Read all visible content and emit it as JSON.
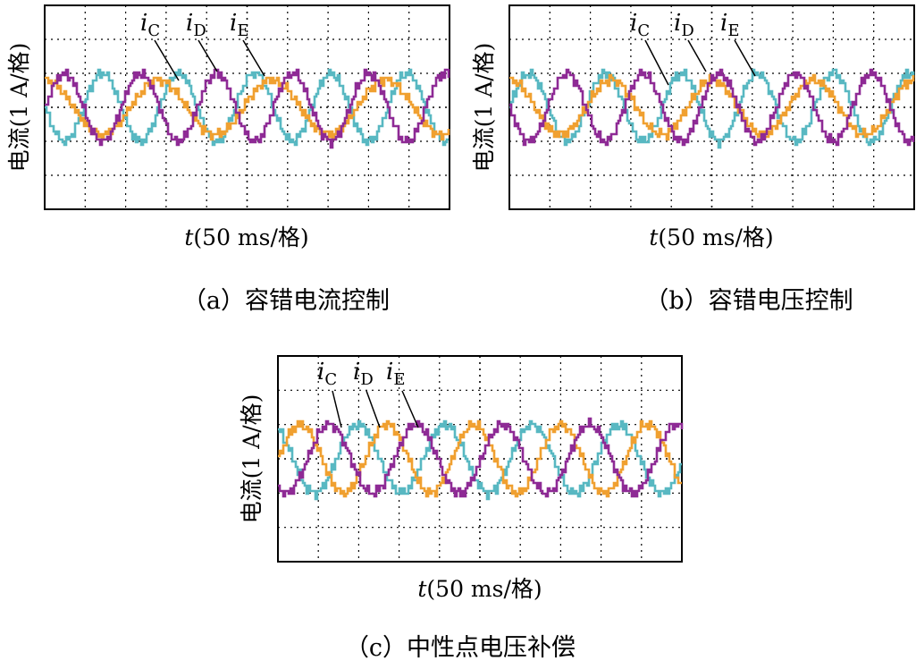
{
  "panels": [
    {
      "caption": "（a）容错电流控制",
      "ylabel": "电流(1 A/格)",
      "xlabel_italic": "t",
      "xlabel_rest": "(50 ms/格)",
      "labels": [
        {
          "sym": "i",
          "sub": "C"
        },
        {
          "sym": "i",
          "sub": "D"
        },
        {
          "sym": "i",
          "sub": "E"
        }
      ]
    },
    {
      "caption": "（b）容错电压控制",
      "ylabel": "电流(1 A/格)",
      "xlabel_italic": "t",
      "xlabel_rest": "(50 ms/格)",
      "labels": [
        {
          "sym": "i",
          "sub": "C"
        },
        {
          "sym": "i",
          "sub": "D"
        },
        {
          "sym": "i",
          "sub": "E"
        }
      ]
    },
    {
      "caption": "（c）中性点电压补偿",
      "ylabel": "电流(1 A/格)",
      "xlabel_italic": "t",
      "xlabel_rest": "(50 ms/格)",
      "labels": [
        {
          "sym": "i",
          "sub": "C"
        },
        {
          "sym": "i",
          "sub": "D"
        },
        {
          "sym": "i",
          "sub": "E"
        }
      ]
    }
  ],
  "colors": {
    "iC": "#58B8C2",
    "iD": "#F0A030",
    "iE": "#8E2A95"
  },
  "chart_data": [
    {
      "type": "line",
      "xlabel": "t(50 ms/格)",
      "ylabel": "电流(1 A/格)",
      "x_unit": "div",
      "xlim": [
        0,
        10
      ],
      "ylim": [
        -3,
        3
      ],
      "grid": true,
      "series": [
        {
          "name": "iC",
          "amplitude": 1.0,
          "period_div": 1.88,
          "phase_deg": 180
        },
        {
          "name": "iD",
          "amplitude": 0.8,
          "period_div": 2.8,
          "phase_deg": 90
        },
        {
          "name": "iE",
          "amplitude": 1.0,
          "period_div": 1.88,
          "phase_deg": 0
        }
      ]
    },
    {
      "type": "line",
      "xlabel": "t(50 ms/格)",
      "ylabel": "电流(1 A/格)",
      "x_unit": "div",
      "xlim": [
        0,
        10
      ],
      "ylim": [
        -3,
        3
      ],
      "grid": true,
      "series": [
        {
          "name": "iC",
          "amplitude": 1.0,
          "period_div": 1.88,
          "phase_deg": 0
        },
        {
          "name": "iD",
          "amplitude": 0.8,
          "period_div": 2.5,
          "phase_deg": 90
        },
        {
          "name": "iE",
          "amplitude": 1.0,
          "period_div": 1.88,
          "phase_deg": 180
        }
      ]
    },
    {
      "type": "line",
      "xlabel": "t(50 ms/格)",
      "ylabel": "电流(1 A/格)",
      "x_unit": "div",
      "xlim": [
        0,
        10
      ],
      "ylim": [
        -3,
        3
      ],
      "grid": true,
      "series": [
        {
          "name": "iC",
          "amplitude": 1.0,
          "period_div": 2.15,
          "phase_deg": 120
        },
        {
          "name": "iD",
          "amplitude": 1.0,
          "period_div": 2.15,
          "phase_deg": 0
        },
        {
          "name": "iE",
          "amplitude": 1.0,
          "period_div": 2.15,
          "phase_deg": 240
        }
      ]
    }
  ]
}
